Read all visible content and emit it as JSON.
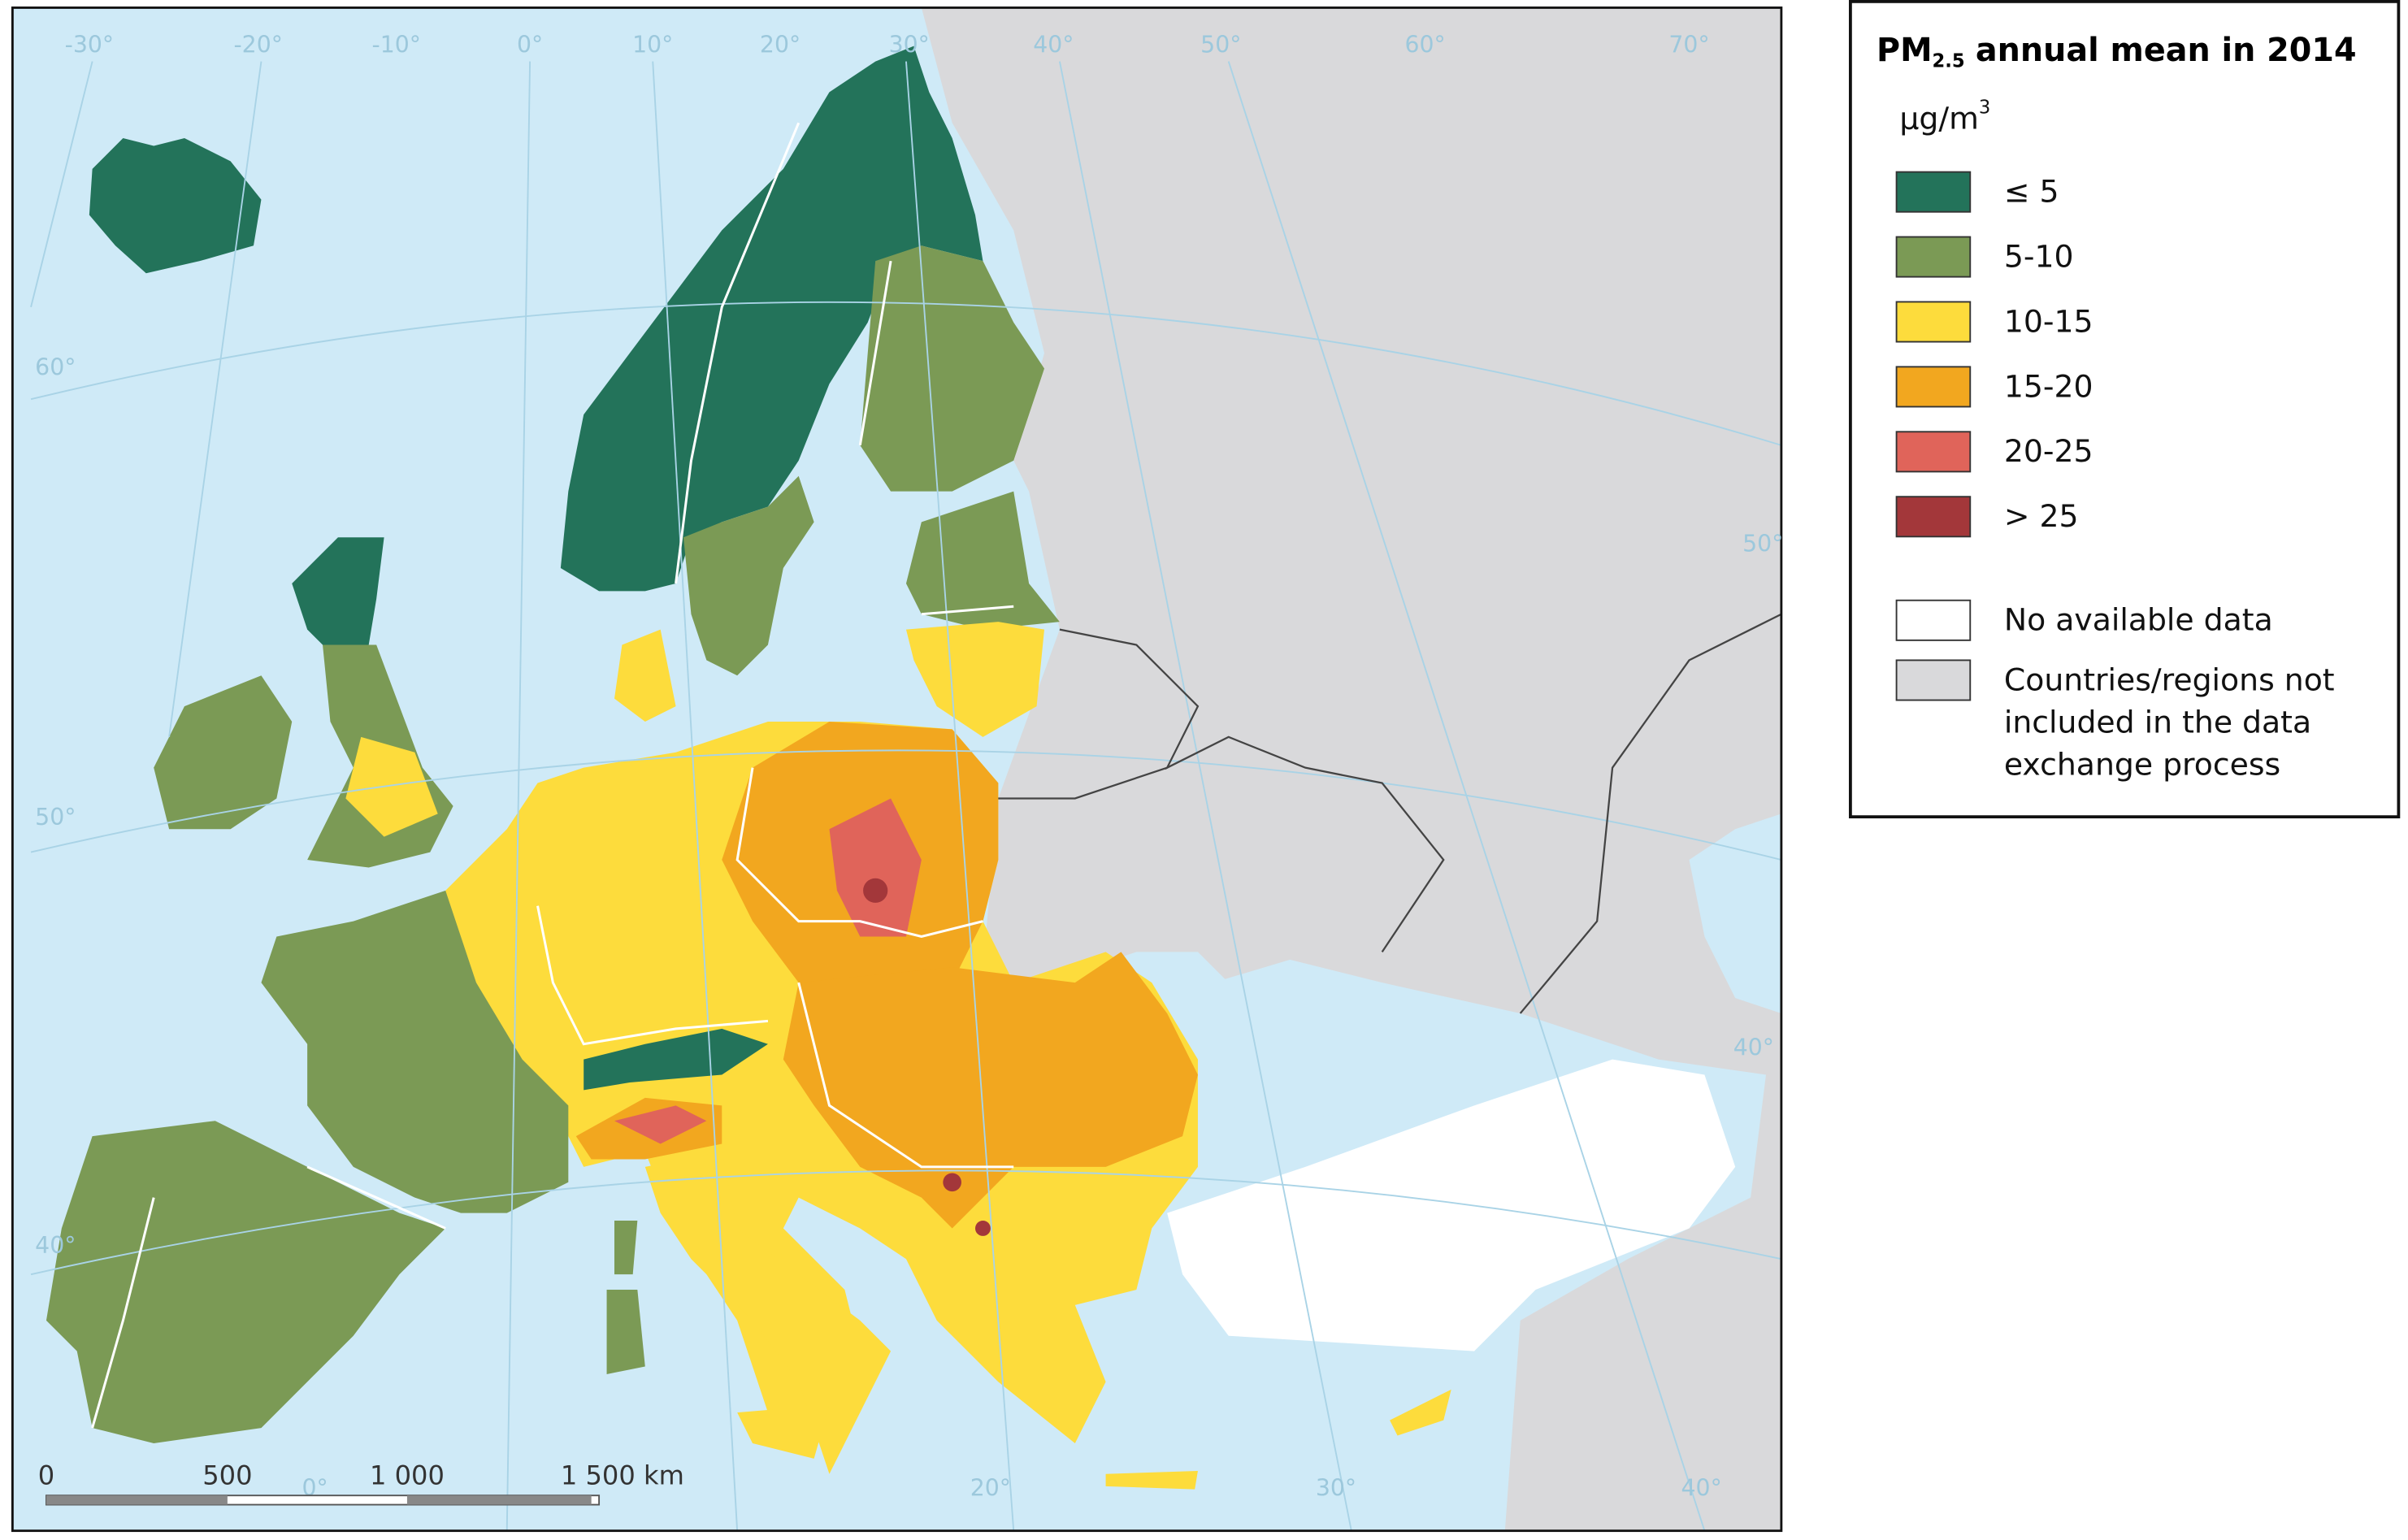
{
  "legend": {
    "title": {
      "main": "PM",
      "sub": "2.5",
      "rest": "annual mean in 2014"
    },
    "unit": {
      "main": "µg/m",
      "sup": "3"
    },
    "items": [
      {
        "label": "≤ 5",
        "color": "#23735a"
      },
      {
        "label": "5-10",
        "color": "#7b9a55"
      },
      {
        "label": "10-15",
        "color": "#fddc3c"
      },
      {
        "label": "15-20",
        "color": "#f2a71f"
      },
      {
        "label": "20-25",
        "color": "#e0645a"
      },
      {
        "label": "> 25",
        "color": "#a3373a"
      }
    ],
    "extra": [
      {
        "lines": [
          "No available data"
        ],
        "color": "#ffffff"
      },
      {
        "lines": [
          "Countries/regions not",
          "included in the data",
          "exchange process"
        ],
        "color": "#d9d9db"
      }
    ]
  },
  "graticule_labels": [
    "-30°",
    "-20°",
    "-10°",
    "0°",
    "10°",
    "20°",
    "30°",
    "40°",
    "50°",
    "60°",
    "70°",
    "60°",
    "50°",
    "40°",
    "50°",
    "40°",
    "0°",
    "20°",
    "30°",
    "40°"
  ],
  "scale_bar": [
    "0",
    "500",
    "1 000",
    "1 500 km"
  ]
}
